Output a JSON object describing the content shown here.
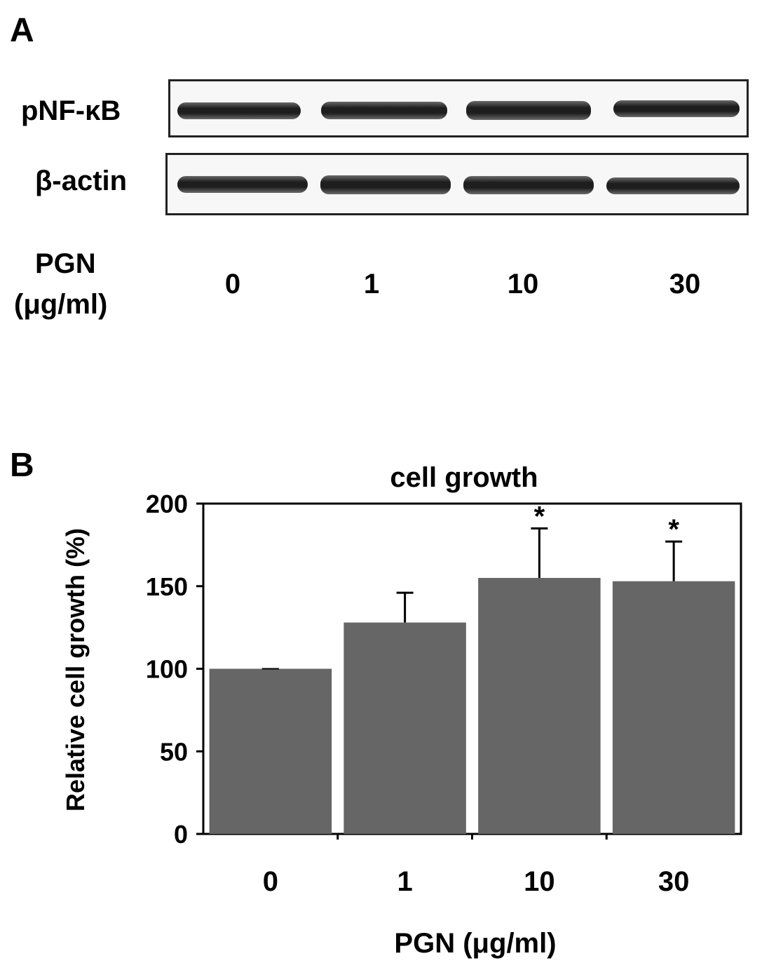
{
  "panels": {
    "a_label": "A",
    "b_label": "B"
  },
  "blot": {
    "rows": [
      {
        "label": "pNF-κB"
      },
      {
        "label": "β-actin"
      }
    ],
    "treatment_label": "PGN",
    "treatment_unit": "(μg/ml)",
    "lanes": [
      "0",
      "1",
      "10",
      "30"
    ]
  },
  "chart_data": {
    "type": "bar",
    "title": "cell growth",
    "xlabel": "PGN (μg/ml)",
    "ylabel": "Relative cell growth (%)",
    "categories": [
      "0",
      "1",
      "10",
      "30"
    ],
    "values": [
      100,
      128,
      155,
      153
    ],
    "errors": [
      0,
      18,
      30,
      24
    ],
    "significance": [
      "",
      "",
      "*",
      "*"
    ],
    "ylim": [
      0,
      200
    ],
    "yticks": [
      0,
      50,
      100,
      150,
      200
    ],
    "bar_color": "#666666",
    "grid": false
  }
}
